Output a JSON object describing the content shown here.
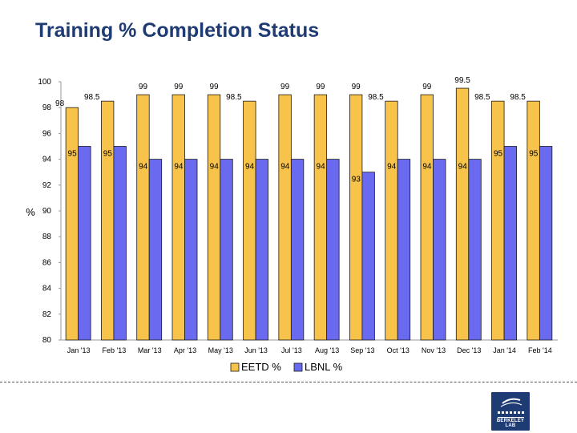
{
  "slide": {
    "title": "Training % Completion Status"
  },
  "logo": {
    "text": "BERKELEY LAB"
  },
  "colors": {
    "eetd": "#f7c34a",
    "lbnl": "#6a6af0",
    "title": "#1f3b73"
  },
  "chart_data": {
    "type": "bar",
    "title": "",
    "xlabel": "",
    "ylabel": "%",
    "ylim": [
      80,
      100
    ],
    "yticks": [
      80,
      82,
      84,
      86,
      88,
      90,
      92,
      94,
      96,
      98,
      100
    ],
    "grid": false,
    "legend_position": "bottom",
    "categories": [
      "Jan '13",
      "Feb '13",
      "Mar '13",
      "Apr '13",
      "May '13",
      "Jun '13",
      "Jul '13",
      "Aug '13",
      "Sep '13",
      "Oct '13",
      "Nov '13",
      "Dec '13",
      "Jan '14",
      "Feb '14"
    ],
    "series": [
      {
        "name": "EETD %",
        "color": "#f7c34a",
        "values": [
          98,
          98.5,
          99,
          99,
          99,
          98.5,
          99,
          99,
          99,
          98.5,
          99,
          99.5,
          98.5,
          98.5
        ]
      },
      {
        "name": "LBNL %",
        "color": "#6a6af0",
        "values": [
          95,
          95,
          94,
          94,
          94,
          94,
          94,
          94,
          93,
          94,
          94,
          94,
          95,
          95
        ]
      }
    ]
  }
}
